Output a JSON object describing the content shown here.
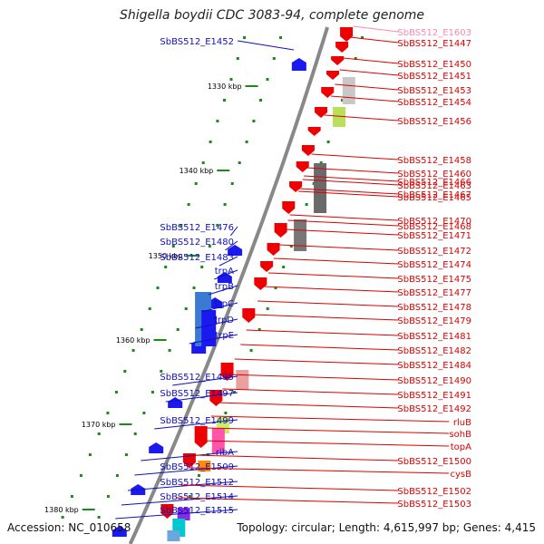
{
  "title": "Shigella boydii CDC 3083-94, complete genome",
  "accession_text": "Accession: NC_010658",
  "summary_text": "Topology: circular; Length: 4,615,997 bp; Genes: 4,415",
  "colors": {
    "forward_label": "#1010c0",
    "reverse_label": "#dd0000",
    "faded_label": "#ff88b0",
    "backbone": "#888888",
    "tick": "#1a8a1a"
  },
  "kbp_ticks": [
    "1330 kbp",
    "1340 kbp",
    "1350 kbp",
    "1360 kbp",
    "1370 kbp",
    "1380 kbp"
  ],
  "left_labels": [
    "SbBS512_E1452",
    "SbBS512_E1476",
    "SbBS512_E1480",
    "SbBS512_E1483",
    "trpA",
    "trpB",
    "trpC",
    "trpD",
    "trpE",
    "SbBS512_E1495",
    "SbBS512_E1497",
    "SbBS512_E1499",
    "ribA",
    "SbBS512_E1509",
    "SbBS512_E1512",
    "SbBS512_E1514",
    "SbBS512_E1515"
  ],
  "right_labels": [
    "SbBS512_E1603",
    "SbBS512_E1447",
    "SbBS512_E1450",
    "SbBS512_E1451",
    "SbBS512_E1453",
    "SbBS512_E1454",
    "SbBS512_E1456",
    "SbBS512_E1458",
    "SbBS512_E1460",
    "SbBS512_E1466",
    "SbBS512_E1463",
    "SbBS512_E1467",
    "SbBS512_E1465",
    "SbBS512_E1470",
    "SbBS512_E1468",
    "SbBS512_E1471",
    "SbBS512_E1472",
    "SbBS512_E1474",
    "SbBS512_E1475",
    "SbBS512_E1477",
    "SbBS512_E1478",
    "SbBS512_E1479",
    "SbBS512_E1481",
    "SbBS512_E1482",
    "SbBS512_E1484",
    "SbBS512_E1490",
    "SbBS512_E1491",
    "SbBS512_E1492",
    "rluB",
    "sohB",
    "topA",
    "SbBS512_E1500",
    "cysB",
    "SbBS512_E1502",
    "SbBS512_E1503"
  ]
}
